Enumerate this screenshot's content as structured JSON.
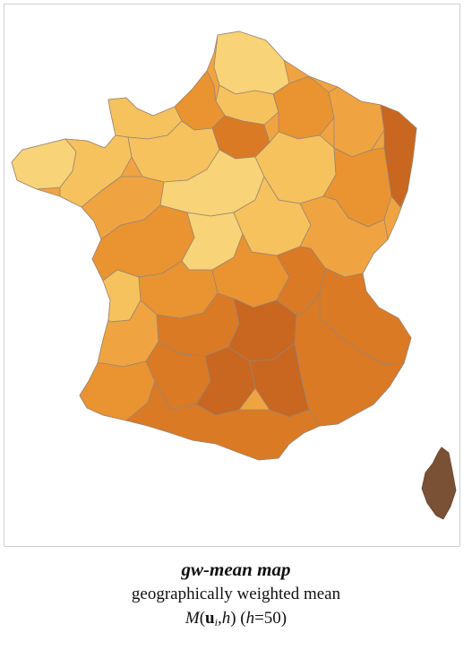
{
  "map": {
    "title": "gw-mean map",
    "subtitle": "geographically weighted mean",
    "formula": {
      "func": "M",
      "open": "(",
      "vec": "u",
      "sub": "i",
      "sep": ",",
      "param": "h",
      "close": ")",
      "paren_note_open": " (",
      "param2": "h",
      "eq": "=50)"
    },
    "legend_colors": {
      "lightest": "#f8d377",
      "light": "#f6c25e",
      "medium": "#f0a441",
      "orange": "#ea9331",
      "dark": "#da7a25",
      "darker": "#c9661f",
      "brown": "#7a5135",
      "border": "#9a8570"
    }
  }
}
